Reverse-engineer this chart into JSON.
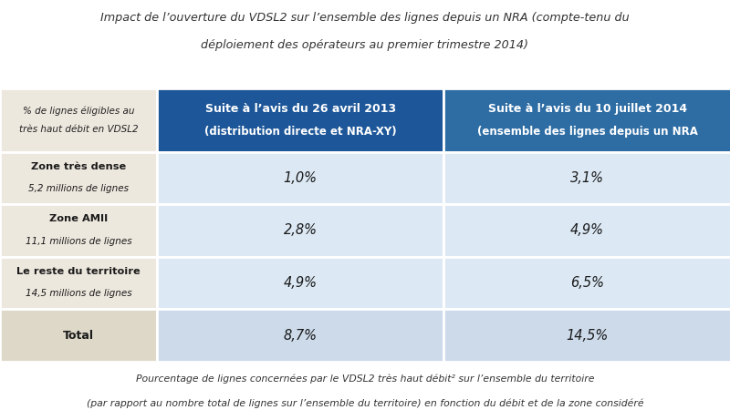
{
  "title_line1": "Impact de l’ouverture du VDSL2 sur l’ensemble des lignes depuis un NRA (compte-tenu du",
  "title_line2": "déploiement des opérateurs au premier trimestre 2014)",
  "col_header_left_1": "% de lignes éligibles au",
  "col_header_left_2": "très haut débit en VDSL2",
  "col_header_mid_line1": "Suite à l’avis du 26 avril 2013",
  "col_header_mid_line2": "(distribution directe et NRA-XY)",
  "col_header_right_line1": "Suite à l’avis du 10 juillet 2014",
  "col_header_right_line2": "(ensemble des lignes depuis un NRA",
  "rows": [
    {
      "label_bold": "Zone très dense",
      "label_italic": "5,2 millions de lignes",
      "val1": "1,0%",
      "val2": "3,1%"
    },
    {
      "label_bold": "Zone AMII",
      "label_italic": "11,1 millions de lignes",
      "val1": "2,8%",
      "val2": "4,9%"
    },
    {
      "label_bold": "Le reste du territoire",
      "label_italic": "14,5 millions de lignes",
      "val1": "4,9%",
      "val2": "6,5%"
    },
    {
      "label_bold": "Total",
      "label_italic": "",
      "val1": "8,7%",
      "val2": "14,5%"
    }
  ],
  "footnote_line1": "Pourcentage de lignes concernées par le VDSL2 très haut débit² sur l’ensemble du territoire",
  "footnote_line2": "(par rapport au nombre total de lignes sur l’ensemble du territoire) en fonction du débit et de la zone considéré",
  "bg_color": "#ffffff",
  "header_bg_mid": "#1e5799",
  "header_bg_right": "#2e6da4",
  "header_text": "#ffffff",
  "row_bg_label": "#ede8de",
  "row_bg_val": "#dce9f5",
  "total_bg_label": "#ddd8c8",
  "total_bg_val": "#ccdaea",
  "grid_color": "#ffffff",
  "title_color": "#333333",
  "label_color": "#1a1a1a",
  "footnote_color": "#333333"
}
